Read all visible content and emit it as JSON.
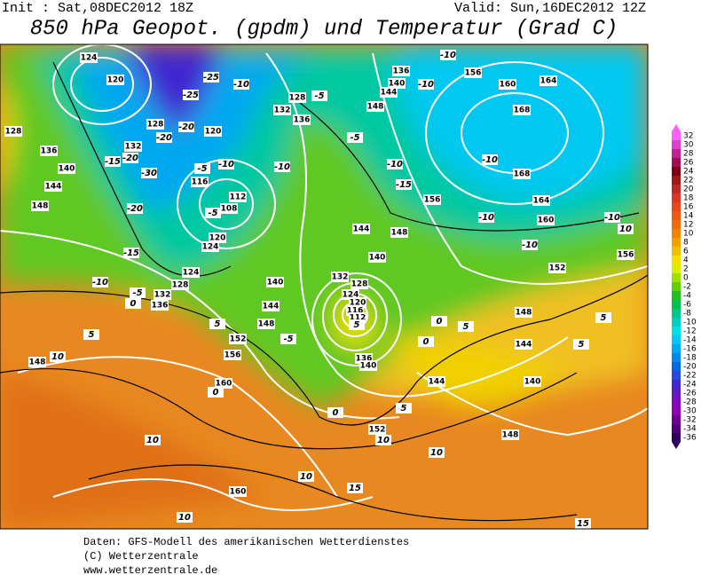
{
  "header": {
    "init": "Init : Sat,08DEC2012 18Z",
    "valid": "Valid: Sun,16DEC2012 12Z",
    "title": "850 hPa Geopot. (gpdm) und Temperatur (Grad C)"
  },
  "footer": {
    "line1": "Daten: GFS-Modell des amerikanischen Wetterdienstes",
    "line2": "(C) Wetterzentrale",
    "line3": "www.wetterzentrale.de"
  },
  "colorbar": {
    "ticks": [
      32,
      30,
      28,
      26,
      24,
      22,
      20,
      18,
      16,
      14,
      12,
      10,
      8,
      6,
      4,
      2,
      0,
      -2,
      -4,
      -6,
      -8,
      -10,
      -12,
      -14,
      -16,
      -18,
      -20,
      -22,
      -24,
      -26,
      -28,
      -30,
      -32,
      -34,
      -36
    ],
    "colors": [
      "#ff60ff",
      "#e040d0",
      "#c02090",
      "#a01050",
      "#800010",
      "#a01818",
      "#c02828",
      "#d83828",
      "#e84818",
      "#f05a10",
      "#f06c08",
      "#f08400",
      "#f0a000",
      "#f0c000",
      "#f0e000",
      "#d8f000",
      "#a0e000",
      "#60d000",
      "#20c020",
      "#00c050",
      "#00c888",
      "#00d0c0",
      "#00e0e8",
      "#00c8f8",
      "#00a8f8",
      "#0088f0",
      "#0068e0",
      "#2848e0",
      "#4028d0",
      "#6018c0",
      "#8008c0",
      "#9000b0",
      "#700090",
      "#500078",
      "#300060"
    ]
  },
  "geopotential_labels": [
    124,
    120,
    128,
    136,
    140,
    144,
    148,
    132,
    128,
    120,
    116,
    112,
    108,
    120,
    124,
    124,
    128,
    132,
    136,
    140,
    144,
    148,
    152,
    156,
    160,
    148,
    160,
    132,
    128,
    124,
    120,
    116,
    112,
    136,
    140,
    144,
    152,
    148,
    140,
    144,
    148,
    152,
    156,
    160,
    164,
    168,
    168,
    164,
    160,
    156,
    148,
    144,
    140,
    136,
    156,
    148,
    144,
    140,
    132,
    128,
    136
  ],
  "temperature_labels": [
    -25,
    -25,
    -20,
    -20,
    -20,
    -15,
    -30,
    -20,
    -15,
    -10,
    -5,
    0,
    -10,
    -5,
    -10,
    -10,
    -5,
    -5,
    -10,
    -15,
    -10,
    -10,
    -10,
    -10,
    -10,
    -10,
    10,
    -5,
    5,
    0,
    5,
    0,
    0,
    5,
    10,
    10,
    5,
    0,
    -5,
    5,
    10,
    10,
    10,
    10,
    15,
    15,
    5,
    5
  ]
}
